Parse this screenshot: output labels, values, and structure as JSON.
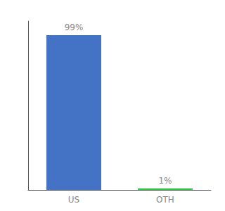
{
  "chart_data": {
    "type": "bar",
    "categories": [
      "US",
      "OTH"
    ],
    "values": [
      99,
      1
    ],
    "value_labels": [
      "99%",
      "1%"
    ],
    "data_labels": true,
    "colors": [
      "#4472c4",
      "#2ecc40"
    ],
    "ylim": [
      0,
      108
    ],
    "tick_labels": "x",
    "grid": false
  }
}
